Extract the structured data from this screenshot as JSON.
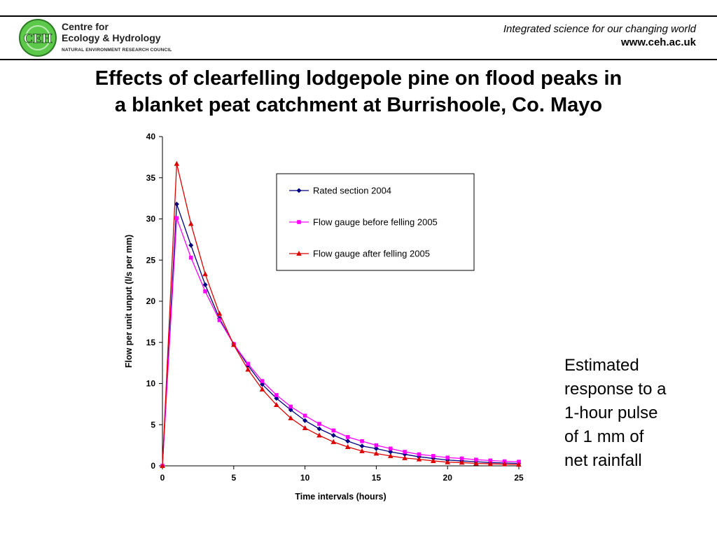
{
  "header": {
    "logo_badge": "CEH",
    "logo_line1": "Centre for",
    "logo_line2": "Ecology & Hydrology",
    "logo_line3": "NATURAL ENVIRONMENT RESEARCH COUNCIL",
    "tagline": "Integrated science for our changing world",
    "website": "www.ceh.ac.uk"
  },
  "title_line1": "Effects of clearfelling lodgepole pine on flood peaks in",
  "title_line2": "a blanket peat catchment at Burrishoole, Co. Mayo",
  "side_note": {
    "lines": [
      "Estimated",
      "response to a",
      "1-hour pulse",
      "of 1 mm of",
      "net rainfall"
    ]
  },
  "colors": {
    "series_rated": "#000080",
    "series_before": "#ff00ff",
    "series_after": "#dd0000",
    "logo_green": "#5cc94a"
  },
  "chart_data": {
    "type": "line",
    "title": "",
    "xlabel": "Time intervals (hours)",
    "ylabel": "Flow per unit unput (l/s per mm)",
    "xlim": [
      0,
      25
    ],
    "ylim": [
      0,
      40
    ],
    "x_ticks": [
      0,
      5,
      10,
      15,
      20,
      25
    ],
    "y_ticks": [
      0,
      5,
      10,
      15,
      20,
      25,
      30,
      35,
      40
    ],
    "grid": false,
    "legend_position": "top-right",
    "x": [
      0,
      1,
      2,
      3,
      4,
      5,
      6,
      7,
      8,
      9,
      10,
      11,
      12,
      13,
      14,
      15,
      16,
      17,
      18,
      19,
      20,
      21,
      22,
      23,
      24,
      25
    ],
    "series": [
      {
        "name": "Rated section 2004",
        "marker": "diamond",
        "values": [
          0,
          31.8,
          26.8,
          22,
          17.9,
          14.8,
          12.2,
          9.9,
          8.2,
          6.8,
          5.5,
          4.5,
          3.7,
          3.0,
          2.4,
          2.1,
          1.7,
          1.4,
          1.1,
          0.9,
          0.7,
          0.6,
          0.5,
          0.4,
          0.35,
          0.3
        ]
      },
      {
        "name": "Flow gauge before felling 2005",
        "marker": "square",
        "values": [
          0,
          30.1,
          25.3,
          21.2,
          17.7,
          14.8,
          12.4,
          10.3,
          8.6,
          7.2,
          6.1,
          5.1,
          4.3,
          3.5,
          3.0,
          2.5,
          2.1,
          1.7,
          1.4,
          1.2,
          1.0,
          0.9,
          0.75,
          0.65,
          0.55,
          0.5
        ]
      },
      {
        "name": "Flow gauge after felling 2005",
        "marker": "triangle",
        "values": [
          0,
          36.7,
          29.4,
          23.3,
          18.5,
          14.7,
          11.7,
          9.3,
          7.4,
          5.8,
          4.6,
          3.7,
          2.9,
          2.3,
          1.8,
          1.5,
          1.2,
          0.95,
          0.8,
          0.6,
          0.45,
          0.4,
          0.3,
          0.25,
          0.2,
          0.15
        ]
      }
    ]
  }
}
